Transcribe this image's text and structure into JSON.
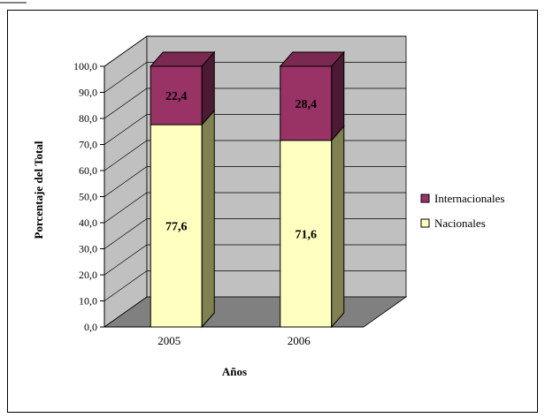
{
  "chart_data": {
    "type": "bar",
    "stacked": true,
    "three_d": true,
    "categories": [
      "2005",
      "2006"
    ],
    "series": [
      {
        "name": "Nacionales",
        "values": [
          77.6,
          71.6
        ],
        "color": "#FFFFC0"
      },
      {
        "name": "Internacionales",
        "values": [
          22.4,
          28.4
        ],
        "color": "#993366"
      }
    ],
    "data_labels": {
      "Nacionales": [
        "77,6",
        "71,6"
      ],
      "Internacionales": [
        "22,4",
        "28,4"
      ]
    },
    "xlabel": "Años",
    "ylabel": "Porcentaje del Total",
    "ylim": [
      0,
      100
    ],
    "yticks": [
      "0,0",
      "10,0",
      "20,0",
      "30,0",
      "40,0",
      "50,0",
      "60,0",
      "70,0",
      "80,0",
      "90,0",
      "100,0"
    ],
    "grid": true,
    "legend_position": "right",
    "colors": {
      "wall": "#C0C0C0",
      "floor": "#808080",
      "internacionales_side": "#4D1A33",
      "nacionales_side": "#808050"
    }
  }
}
